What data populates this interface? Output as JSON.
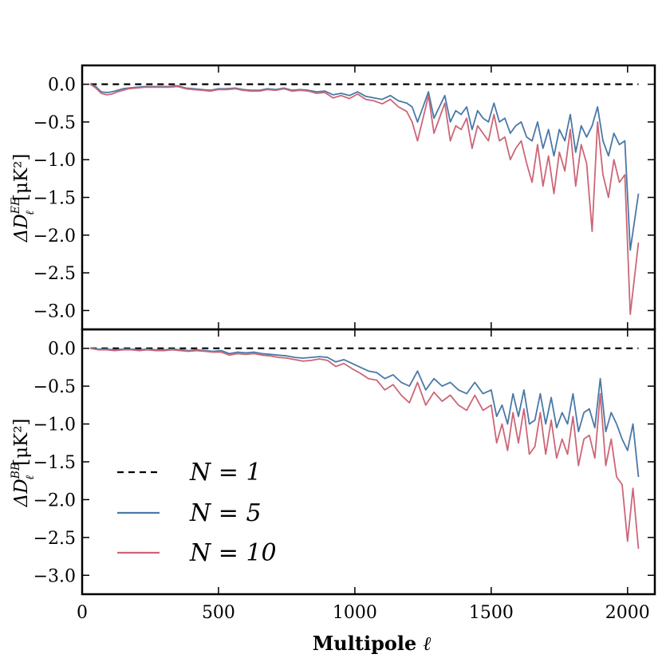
{
  "chart_data": [
    {
      "type": "line",
      "panel": "top",
      "ylabel_parts": {
        "delta": "ΔD",
        "sub": "ℓ",
        "sup": "EE",
        "unit": "[μK²]"
      },
      "xlim": [
        0,
        2100
      ],
      "ylim": [
        -3.25,
        0.25
      ],
      "yticks": [
        0.0,
        -0.5,
        -1.0,
        -1.5,
        -2.0,
        -2.5,
        -3.0
      ],
      "ytick_labels": [
        "0.0",
        "−0.5",
        "−1.0",
        "−1.5",
        "−2.0",
        "−2.5",
        "−3.0"
      ],
      "series": [
        {
          "name": "N = 1",
          "style": "dashed",
          "color": "#000000",
          "x": [
            30,
            2040
          ],
          "y": [
            0.0,
            0.0
          ]
        },
        {
          "name": "N = 5",
          "style": "solid",
          "color": "#4a78a8",
          "x": [
            30,
            50,
            70,
            90,
            110,
            130,
            150,
            170,
            200,
            230,
            260,
            290,
            320,
            350,
            380,
            410,
            440,
            470,
            500,
            530,
            560,
            590,
            620,
            650,
            680,
            710,
            740,
            770,
            800,
            830,
            860,
            890,
            920,
            950,
            980,
            1010,
            1040,
            1070,
            1100,
            1130,
            1160,
            1190,
            1210,
            1230,
            1250,
            1270,
            1290,
            1310,
            1330,
            1350,
            1370,
            1390,
            1410,
            1430,
            1450,
            1470,
            1490,
            1510,
            1530,
            1550,
            1570,
            1590,
            1610,
            1630,
            1650,
            1670,
            1690,
            1710,
            1730,
            1750,
            1770,
            1790,
            1810,
            1830,
            1850,
            1870,
            1890,
            1910,
            1930,
            1950,
            1970,
            1990,
            2010,
            2040
          ],
          "y": [
            0.0,
            -0.03,
            -0.1,
            -0.11,
            -0.1,
            -0.08,
            -0.06,
            -0.05,
            -0.04,
            -0.03,
            -0.03,
            -0.03,
            -0.03,
            -0.02,
            -0.05,
            -0.06,
            -0.07,
            -0.08,
            -0.06,
            -0.06,
            -0.05,
            -0.07,
            -0.08,
            -0.08,
            -0.06,
            -0.07,
            -0.05,
            -0.08,
            -0.07,
            -0.08,
            -0.1,
            -0.09,
            -0.14,
            -0.12,
            -0.15,
            -0.1,
            -0.16,
            -0.18,
            -0.2,
            -0.15,
            -0.22,
            -0.25,
            -0.3,
            -0.5,
            -0.3,
            -0.1,
            -0.45,
            -0.3,
            -0.15,
            -0.5,
            -0.35,
            -0.4,
            -0.3,
            -0.6,
            -0.35,
            -0.45,
            -0.5,
            -0.25,
            -0.5,
            -0.45,
            -0.65,
            -0.55,
            -0.5,
            -0.7,
            -0.75,
            -0.5,
            -0.85,
            -0.6,
            -0.95,
            -0.6,
            -0.75,
            -0.4,
            -0.9,
            -0.55,
            -0.7,
            -0.55,
            -0.3,
            -0.75,
            -0.95,
            -0.65,
            -0.8,
            -0.75,
            -2.2,
            -1.45
          ]
        },
        {
          "name": "N = 10",
          "style": "solid",
          "color": "#cc6677",
          "x": [
            30,
            50,
            70,
            90,
            110,
            130,
            150,
            170,
            200,
            230,
            260,
            290,
            320,
            350,
            380,
            410,
            440,
            470,
            500,
            530,
            560,
            590,
            620,
            650,
            680,
            710,
            740,
            770,
            800,
            830,
            860,
            890,
            920,
            950,
            980,
            1010,
            1040,
            1070,
            1100,
            1130,
            1160,
            1190,
            1210,
            1230,
            1250,
            1270,
            1290,
            1310,
            1330,
            1350,
            1370,
            1390,
            1410,
            1430,
            1450,
            1470,
            1490,
            1510,
            1530,
            1550,
            1570,
            1590,
            1610,
            1630,
            1650,
            1670,
            1690,
            1710,
            1730,
            1750,
            1770,
            1790,
            1810,
            1830,
            1850,
            1870,
            1890,
            1910,
            1930,
            1950,
            1970,
            1990,
            2010,
            2040
          ],
          "y": [
            0.0,
            -0.05,
            -0.12,
            -0.14,
            -0.13,
            -0.1,
            -0.08,
            -0.06,
            -0.05,
            -0.04,
            -0.04,
            -0.04,
            -0.04,
            -0.03,
            -0.06,
            -0.07,
            -0.08,
            -0.09,
            -0.07,
            -0.07,
            -0.06,
            -0.08,
            -0.09,
            -0.09,
            -0.07,
            -0.08,
            -0.06,
            -0.09,
            -0.08,
            -0.09,
            -0.12,
            -0.11,
            -0.18,
            -0.15,
            -0.19,
            -0.13,
            -0.2,
            -0.22,
            -0.26,
            -0.2,
            -0.3,
            -0.36,
            -0.5,
            -0.75,
            -0.45,
            -0.15,
            -0.65,
            -0.45,
            -0.25,
            -0.75,
            -0.55,
            -0.6,
            -0.45,
            -0.85,
            -0.55,
            -0.65,
            -0.75,
            -0.4,
            -0.75,
            -0.7,
            -1.0,
            -0.85,
            -0.75,
            -1.05,
            -1.3,
            -0.8,
            -1.35,
            -0.95,
            -1.45,
            -0.9,
            -1.15,
            -0.6,
            -1.35,
            -0.8,
            -1.05,
            -1.95,
            -0.5,
            -1.2,
            -1.5,
            -1.0,
            -1.3,
            -1.2,
            -3.05,
            -2.1
          ]
        }
      ]
    },
    {
      "type": "line",
      "panel": "bottom",
      "ylabel_parts": {
        "delta": "ΔD",
        "sub": "ℓ",
        "sup": "BB",
        "unit": "[μK²]"
      },
      "xlabel_bold": "Multipole",
      "xlabel_ital": "ℓ",
      "xlim": [
        0,
        2100
      ],
      "ylim": [
        -3.25,
        0.25
      ],
      "xticks": [
        0,
        500,
        1000,
        1500,
        2000
      ],
      "xtick_labels": [
        "0",
        "500",
        "1000",
        "1500",
        "2000"
      ],
      "yticks": [
        0.0,
        -0.5,
        -1.0,
        -1.5,
        -2.0,
        -2.5,
        -3.0
      ],
      "ytick_labels": [
        "0.0",
        "−0.5",
        "−1.0",
        "−1.5",
        "−2.0",
        "−2.5",
        "−3.0"
      ],
      "legend_position": "lower-left",
      "series": [
        {
          "name": "N = 1",
          "style": "dashed",
          "color": "#000000",
          "x": [
            30,
            2040
          ],
          "y": [
            0.0,
            0.0
          ]
        },
        {
          "name": "N = 5",
          "style": "solid",
          "color": "#4a78a8",
          "x": [
            30,
            60,
            90,
            120,
            150,
            180,
            210,
            240,
            270,
            300,
            330,
            360,
            390,
            420,
            450,
            480,
            510,
            540,
            570,
            600,
            630,
            660,
            690,
            720,
            750,
            780,
            810,
            840,
            870,
            900,
            930,
            960,
            990,
            1020,
            1050,
            1080,
            1110,
            1140,
            1170,
            1200,
            1230,
            1260,
            1290,
            1320,
            1350,
            1380,
            1410,
            1440,
            1470,
            1500,
            1520,
            1540,
            1560,
            1580,
            1600,
            1620,
            1640,
            1660,
            1680,
            1700,
            1720,
            1740,
            1760,
            1780,
            1800,
            1820,
            1840,
            1860,
            1880,
            1900,
            1920,
            1940,
            1960,
            1980,
            2000,
            2020,
            2040
          ],
          "y": [
            0.0,
            -0.01,
            -0.01,
            -0.02,
            -0.01,
            -0.01,
            -0.02,
            -0.01,
            -0.02,
            -0.02,
            -0.01,
            -0.02,
            -0.03,
            -0.02,
            -0.03,
            -0.04,
            -0.03,
            -0.07,
            -0.05,
            -0.06,
            -0.05,
            -0.07,
            -0.08,
            -0.09,
            -0.1,
            -0.12,
            -0.13,
            -0.12,
            -0.11,
            -0.12,
            -0.18,
            -0.15,
            -0.2,
            -0.25,
            -0.3,
            -0.32,
            -0.4,
            -0.35,
            -0.45,
            -0.5,
            -0.3,
            -0.55,
            -0.4,
            -0.5,
            -0.45,
            -0.55,
            -0.6,
            -0.45,
            -0.6,
            -0.55,
            -0.9,
            -0.75,
            -1.0,
            -0.6,
            -0.9,
            -0.55,
            -1.0,
            -0.95,
            -0.6,
            -1.0,
            -0.65,
            -1.05,
            -0.85,
            -1.0,
            -0.6,
            -1.1,
            -0.85,
            -0.8,
            -1.05,
            -0.4,
            -1.1,
            -0.85,
            -1.0,
            -1.2,
            -1.35,
            -1.0,
            -1.7
          ]
        },
        {
          "name": "N = 10",
          "style": "solid",
          "color": "#cc6677",
          "x": [
            30,
            60,
            90,
            120,
            150,
            180,
            210,
            240,
            270,
            300,
            330,
            360,
            390,
            420,
            450,
            480,
            510,
            540,
            570,
            600,
            630,
            660,
            690,
            720,
            750,
            780,
            810,
            840,
            870,
            900,
            930,
            960,
            990,
            1020,
            1050,
            1080,
            1110,
            1140,
            1170,
            1200,
            1230,
            1260,
            1290,
            1320,
            1350,
            1380,
            1410,
            1440,
            1470,
            1500,
            1520,
            1540,
            1560,
            1580,
            1600,
            1620,
            1640,
            1660,
            1680,
            1700,
            1720,
            1740,
            1760,
            1780,
            1800,
            1820,
            1840,
            1860,
            1880,
            1900,
            1920,
            1940,
            1960,
            1980,
            2000,
            2020,
            2040
          ],
          "y": [
            0.0,
            -0.02,
            -0.02,
            -0.03,
            -0.02,
            -0.02,
            -0.03,
            -0.02,
            -0.03,
            -0.03,
            -0.02,
            -0.03,
            -0.04,
            -0.03,
            -0.04,
            -0.05,
            -0.05,
            -0.09,
            -0.07,
            -0.08,
            -0.07,
            -0.09,
            -0.1,
            -0.12,
            -0.13,
            -0.15,
            -0.17,
            -0.16,
            -0.14,
            -0.16,
            -0.24,
            -0.2,
            -0.27,
            -0.33,
            -0.4,
            -0.42,
            -0.55,
            -0.48,
            -0.62,
            -0.72,
            -0.45,
            -0.75,
            -0.58,
            -0.7,
            -0.62,
            -0.75,
            -0.82,
            -0.62,
            -0.82,
            -0.75,
            -1.25,
            -1.0,
            -1.35,
            -0.85,
            -1.25,
            -0.8,
            -1.4,
            -1.3,
            -0.85,
            -1.4,
            -0.95,
            -1.45,
            -1.2,
            -1.4,
            -0.9,
            -1.55,
            -1.2,
            -1.15,
            -1.45,
            -0.6,
            -1.55,
            -1.2,
            -1.7,
            -1.8,
            -2.55,
            -1.85,
            -2.65
          ]
        }
      ]
    }
  ]
}
